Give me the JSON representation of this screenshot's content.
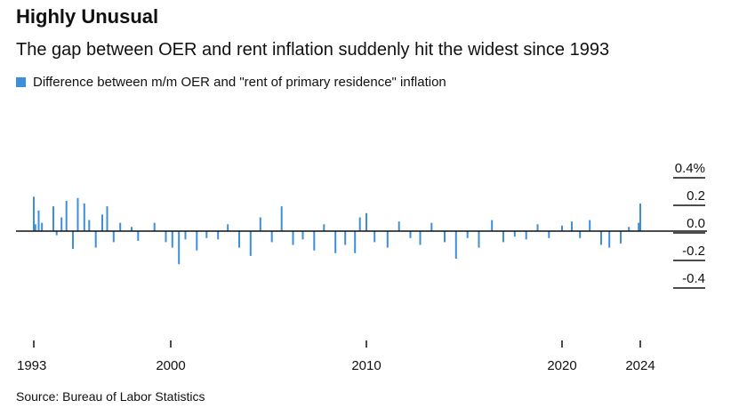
{
  "header": {
    "title": "Highly Unusual",
    "subtitle": "The gap between OER and rent inflation suddenly hit the widest since 1993"
  },
  "legend": {
    "label": "Difference between m/m OER and \"rent of primary residence\" inflation",
    "color": "#3d8fd9"
  },
  "footer": {
    "source": "Source: Bureau of Labor Statistics"
  },
  "chart_data": {
    "type": "bar",
    "title": "Highly Unusual",
    "subtitle": "The gap between OER and rent inflation suddenly hit the widest since 1993",
    "series": [
      {
        "name": "Difference between m/m OER and \"rent of primary residence\" inflation",
        "color": "#3d8fd9",
        "points": [
          {
            "x": "1993-01",
            "y": 0.25
          },
          {
            "x": "1993-02",
            "y": 0.05
          },
          {
            "x": "1993-04",
            "y": 0.15
          },
          {
            "x": "1993-06",
            "y": 0.06
          },
          {
            "x": "1994-01",
            "y": 0.18
          },
          {
            "x": "1994-03",
            "y": -0.03
          },
          {
            "x": "1994-06",
            "y": 0.1
          },
          {
            "x": "1994-09",
            "y": 0.22
          },
          {
            "x": "1995-01",
            "y": -0.13
          },
          {
            "x": "1995-04",
            "y": 0.24
          },
          {
            "x": "1995-08",
            "y": 0.2
          },
          {
            "x": "1995-11",
            "y": 0.08
          },
          {
            "x": "1996-03",
            "y": -0.12
          },
          {
            "x": "1996-07",
            "y": 0.12
          },
          {
            "x": "1996-10",
            "y": 0.18
          },
          {
            "x": "1997-02",
            "y": -0.08
          },
          {
            "x": "1997-06",
            "y": 0.06
          },
          {
            "x": "1998-01",
            "y": 0.03
          },
          {
            "x": "1998-05",
            "y": -0.07
          },
          {
            "x": "1999-03",
            "y": 0.06
          },
          {
            "x": "1999-10",
            "y": -0.08
          },
          {
            "x": "2000-02",
            "y": -0.12
          },
          {
            "x": "2000-06",
            "y": -0.24
          },
          {
            "x": "2000-10",
            "y": -0.06
          },
          {
            "x": "2001-05",
            "y": -0.14
          },
          {
            "x": "2001-11",
            "y": -0.05
          },
          {
            "x": "2002-06",
            "y": -0.06
          },
          {
            "x": "2002-12",
            "y": 0.05
          },
          {
            "x": "2003-07",
            "y": -0.12
          },
          {
            "x": "2004-02",
            "y": -0.18
          },
          {
            "x": "2004-08",
            "y": 0.1
          },
          {
            "x": "2005-03",
            "y": -0.08
          },
          {
            "x": "2005-09",
            "y": 0.18
          },
          {
            "x": "2006-04",
            "y": -0.1
          },
          {
            "x": "2006-10",
            "y": -0.06
          },
          {
            "x": "2007-05",
            "y": -0.14
          },
          {
            "x": "2007-11",
            "y": 0.05
          },
          {
            "x": "2008-06",
            "y": -0.16
          },
          {
            "x": "2008-12",
            "y": -0.1
          },
          {
            "x": "2009-06",
            "y": -0.16
          },
          {
            "x": "2009-09",
            "y": 0.1
          },
          {
            "x": "2010-01",
            "y": 0.13
          },
          {
            "x": "2010-06",
            "y": -0.08
          },
          {
            "x": "2011-02",
            "y": -0.12
          },
          {
            "x": "2011-09",
            "y": 0.07
          },
          {
            "x": "2012-04",
            "y": -0.05
          },
          {
            "x": "2012-10",
            "y": -0.1
          },
          {
            "x": "2013-05",
            "y": 0.06
          },
          {
            "x": "2014-01",
            "y": -0.08
          },
          {
            "x": "2014-08",
            "y": -0.2
          },
          {
            "x": "2015-03",
            "y": -0.05
          },
          {
            "x": "2015-10",
            "y": -0.12
          },
          {
            "x": "2016-06",
            "y": 0.08
          },
          {
            "x": "2017-01",
            "y": -0.08
          },
          {
            "x": "2017-08",
            "y": -0.04
          },
          {
            "x": "2018-03",
            "y": -0.06
          },
          {
            "x": "2018-10",
            "y": 0.05
          },
          {
            "x": "2019-05",
            "y": -0.05
          },
          {
            "x": "2020-01",
            "y": 0.04
          },
          {
            "x": "2020-07",
            "y": 0.07
          },
          {
            "x": "2020-12",
            "y": -0.05
          },
          {
            "x": "2021-06",
            "y": 0.08
          },
          {
            "x": "2022-01",
            "y": -0.1
          },
          {
            "x": "2022-06",
            "y": -0.12
          },
          {
            "x": "2023-01",
            "y": -0.09
          },
          {
            "x": "2023-06",
            "y": 0.03
          },
          {
            "x": "2023-12",
            "y": 0.06
          },
          {
            "x": "2024-01",
            "y": 0.2
          }
        ]
      }
    ],
    "x_ticks": [
      "1993",
      "2000",
      "2010",
      "2020",
      "2024"
    ],
    "y_ticks": [
      0.4,
      0.2,
      0.0,
      -0.2,
      -0.4
    ],
    "y_tick_labels": [
      "0.4%",
      "0.2",
      "0.0",
      "-0.2",
      "-0.4"
    ],
    "xlim": [
      "1993-01",
      "2024-01"
    ],
    "ylim": [
      -0.4,
      0.4
    ],
    "grid": false,
    "legend_position": "top-left"
  }
}
